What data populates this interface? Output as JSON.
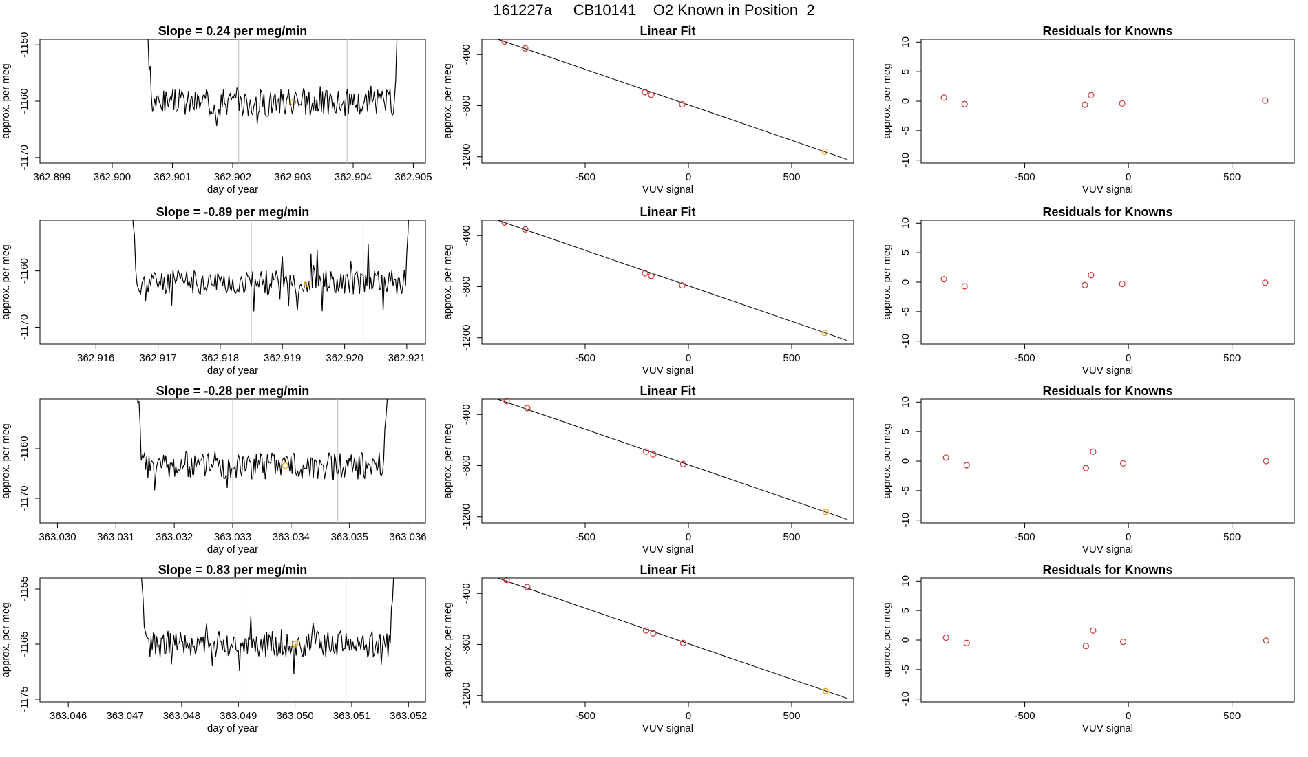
{
  "page_title": "161227a     CB10141    O2 Known in Position  2",
  "colors": {
    "line": "#000000",
    "known_point": "#cc3333",
    "sample_point": "#e69f00",
    "marker_line": "#bbbbbb"
  },
  "chart_data": [
    {
      "type": "line",
      "panel": "trace-1",
      "title": "Slope =  0.24  per meg/min",
      "xlabel": "day of year",
      "ylabel": "approx. per meg",
      "xlim": [
        362.8988,
        362.9052
      ],
      "ylim": [
        -1171,
        -1149
      ],
      "xticks": [
        "362.899",
        "362.900",
        "362.901",
        "362.902",
        "362.903",
        "362.904",
        "362.905"
      ],
      "yticks": [
        "-1150",
        "-1160",
        "-1170"
      ],
      "markers": [
        362.9021,
        362.9039
      ],
      "sample_point": [
        362.903,
        -1160.2
      ],
      "x_start": 362.9005,
      "x_end": 362.9048,
      "base": -1160.2,
      "noise": 2.5,
      "spike": 2.8,
      "seed": 3
    },
    {
      "type": "line",
      "panel": "trace-2",
      "title": "Slope =  -0.89  per meg/min",
      "xlabel": "day of year",
      "ylabel": "approx. per meg",
      "xlim": [
        362.9151,
        362.9213
      ],
      "ylim": [
        -1173,
        -1151
      ],
      "xticks": [
        "362.916",
        "362.917",
        "362.918",
        "362.919",
        "362.920",
        "362.921"
      ],
      "yticks": [
        "-1160",
        "-1170"
      ],
      "markers": [
        362.9185,
        362.9203
      ],
      "sample_point": [
        362.9194,
        -1162.3
      ],
      "x_start": 362.9165,
      "x_end": 362.9211,
      "base": -1162.0,
      "noise": 2.2,
      "spike": 5.5,
      "seed": 11
    },
    {
      "type": "line",
      "panel": "trace-3",
      "title": "Slope =  -0.28  per meg/min",
      "xlabel": "day of year",
      "ylabel": "approx. per meg",
      "xlim": [
        363.0297,
        363.0363
      ],
      "ylim": [
        -1175,
        -1150
      ],
      "xticks": [
        "363.030",
        "363.031",
        "363.032",
        "363.033",
        "363.034",
        "363.035",
        "363.036"
      ],
      "yticks": [
        "-1160",
        "-1170"
      ],
      "markers": [
        363.033,
        363.0348
      ],
      "sample_point": [
        363.0339,
        -1163.4
      ],
      "x_start": 363.0313,
      "x_end": 363.0357,
      "base": -1163.4,
      "noise": 2.8,
      "spike": 4.0,
      "seed": 23
    },
    {
      "type": "line",
      "panel": "trace-4",
      "title": "Slope =  0.83  per meg/min",
      "xlabel": "day of year",
      "ylabel": "approx. per meg",
      "xlim": [
        363.0455,
        363.0523
      ],
      "ylim": [
        -1175.5,
        -1153
      ],
      "xticks": [
        "363.046",
        "363.047",
        "363.048",
        "363.049",
        "363.050",
        "363.051",
        "363.052"
      ],
      "yticks": [
        "-1155",
        "-1165",
        "-1175"
      ],
      "markers": [
        363.0491,
        363.0509
      ],
      "sample_point": [
        363.05,
        -1165.0
      ],
      "x_start": 363.0472,
      "x_end": 363.0518,
      "base": -1165.0,
      "noise": 2.4,
      "spike": 4.5,
      "seed": 37
    },
    {
      "type": "scatter",
      "panel": "fit-1",
      "title": "Linear Fit",
      "xlabel": "VUV signal",
      "ylabel": "approx. per meg",
      "xlim": [
        -1000,
        800
      ],
      "ylim": [
        -1250,
        -280
      ],
      "xticks": [
        "-500",
        "0",
        "500"
      ],
      "yticks": [
        "-400",
        "-800",
        "-1200"
      ],
      "known_points": [
        [
          -890,
          -298
        ],
        [
          -790,
          -352
        ],
        [
          -210,
          -695
        ],
        [
          -180,
          -715
        ],
        [
          -30,
          -790
        ]
      ],
      "sample_points": [
        [
          660,
          -1160
        ]
      ],
      "fit_line": [
        [
          -920,
          -282
        ],
        [
          770,
          -1222
        ]
      ]
    },
    {
      "type": "scatter",
      "panel": "fit-2",
      "title": "Linear Fit",
      "xlabel": "VUV signal",
      "ylabel": "approx. per meg",
      "xlim": [
        -1000,
        800
      ],
      "ylim": [
        -1250,
        -280
      ],
      "xticks": [
        "-500",
        "0",
        "500"
      ],
      "yticks": [
        "-400",
        "-800",
        "-1200"
      ],
      "known_points": [
        [
          -890,
          -298
        ],
        [
          -790,
          -352
        ],
        [
          -210,
          -695
        ],
        [
          -180,
          -715
        ],
        [
          -30,
          -790
        ]
      ],
      "sample_points": [
        [
          660,
          -1162
        ]
      ],
      "fit_line": [
        [
          -920,
          -282
        ],
        [
          770,
          -1222
        ]
      ]
    },
    {
      "type": "scatter",
      "panel": "fit-3",
      "title": "Linear Fit",
      "xlabel": "VUV signal",
      "ylabel": "approx. per meg",
      "xlim": [
        -1000,
        800
      ],
      "ylim": [
        -1250,
        -280
      ],
      "xticks": [
        "-500",
        "0",
        "500"
      ],
      "yticks": [
        "-400",
        "-800",
        "-1200"
      ],
      "known_points": [
        [
          -880,
          -295
        ],
        [
          -780,
          -350
        ],
        [
          -205,
          -690
        ],
        [
          -170,
          -712
        ],
        [
          -25,
          -788
        ]
      ],
      "sample_points": [
        [
          665,
          -1163
        ]
      ],
      "fit_line": [
        [
          -920,
          -282
        ],
        [
          770,
          -1222
        ]
      ]
    },
    {
      "type": "scatter",
      "panel": "fit-4",
      "title": "Linear Fit",
      "xlabel": "VUV signal",
      "ylabel": "approx. per meg",
      "xlim": [
        -1000,
        800
      ],
      "ylim": [
        -1250,
        -280
      ],
      "xticks": [
        "-500",
        "0",
        "500"
      ],
      "yticks": [
        "-400",
        "-800",
        "-1200"
      ],
      "known_points": [
        [
          -880,
          -295
        ],
        [
          -780,
          -350
        ],
        [
          -205,
          -690
        ],
        [
          -170,
          -712
        ],
        [
          -25,
          -788
        ]
      ],
      "sample_points": [
        [
          665,
          -1165
        ]
      ],
      "fit_line": [
        [
          -920,
          -282
        ],
        [
          770,
          -1222
        ]
      ]
    },
    {
      "type": "scatter",
      "panel": "resid-1",
      "title": "Residuals for Knowns",
      "xlabel": "VUV signal",
      "ylabel": "approx. per meg",
      "xlim": [
        -1000,
        800
      ],
      "ylim": [
        -10.5,
        10.5
      ],
      "xticks": [
        "-500",
        "0",
        "500"
      ],
      "yticks": [
        "10",
        "5",
        "0",
        "-5",
        "-10"
      ],
      "known_points": [
        [
          -890,
          0.6
        ],
        [
          -790,
          -0.5
        ],
        [
          -210,
          -0.6
        ],
        [
          -180,
          1.0
        ],
        [
          -30,
          -0.4
        ],
        [
          660,
          0.1
        ]
      ]
    },
    {
      "type": "scatter",
      "panel": "resid-2",
      "title": "Residuals for Knowns",
      "xlabel": "VUV signal",
      "ylabel": "approx. per meg",
      "xlim": [
        -1000,
        800
      ],
      "ylim": [
        -10.5,
        10.5
      ],
      "xticks": [
        "-500",
        "0",
        "500"
      ],
      "yticks": [
        "10",
        "5",
        "0",
        "-5",
        "-10"
      ],
      "known_points": [
        [
          -890,
          0.5
        ],
        [
          -790,
          -0.7
        ],
        [
          -210,
          -0.5
        ],
        [
          -180,
          1.2
        ],
        [
          -30,
          -0.3
        ],
        [
          660,
          -0.1
        ]
      ]
    },
    {
      "type": "scatter",
      "panel": "resid-3",
      "title": "Residuals for Knowns",
      "xlabel": "VUV signal",
      "ylabel": "approx. per meg",
      "xlim": [
        -1000,
        800
      ],
      "ylim": [
        -10.5,
        10.5
      ],
      "xticks": [
        "-500",
        "0",
        "500"
      ],
      "yticks": [
        "10",
        "5",
        "0",
        "-5",
        "-10"
      ],
      "known_points": [
        [
          -880,
          0.6
        ],
        [
          -780,
          -0.7
        ],
        [
          -205,
          -1.2
        ],
        [
          -170,
          1.6
        ],
        [
          -25,
          -0.4
        ],
        [
          665,
          0.0
        ]
      ]
    },
    {
      "type": "scatter",
      "panel": "resid-4",
      "title": "Residuals for Knowns",
      "xlabel": "VUV signal",
      "ylabel": "approx. per meg",
      "xlim": [
        -1000,
        800
      ],
      "ylim": [
        -10.5,
        10.5
      ],
      "xticks": [
        "-500",
        "0",
        "500"
      ],
      "yticks": [
        "10",
        "5",
        "0",
        "-5",
        "-10"
      ],
      "known_points": [
        [
          -880,
          0.4
        ],
        [
          -780,
          -0.5
        ],
        [
          -205,
          -1.0
        ],
        [
          -170,
          1.6
        ],
        [
          -25,
          -0.3
        ],
        [
          665,
          -0.1
        ]
      ]
    }
  ]
}
